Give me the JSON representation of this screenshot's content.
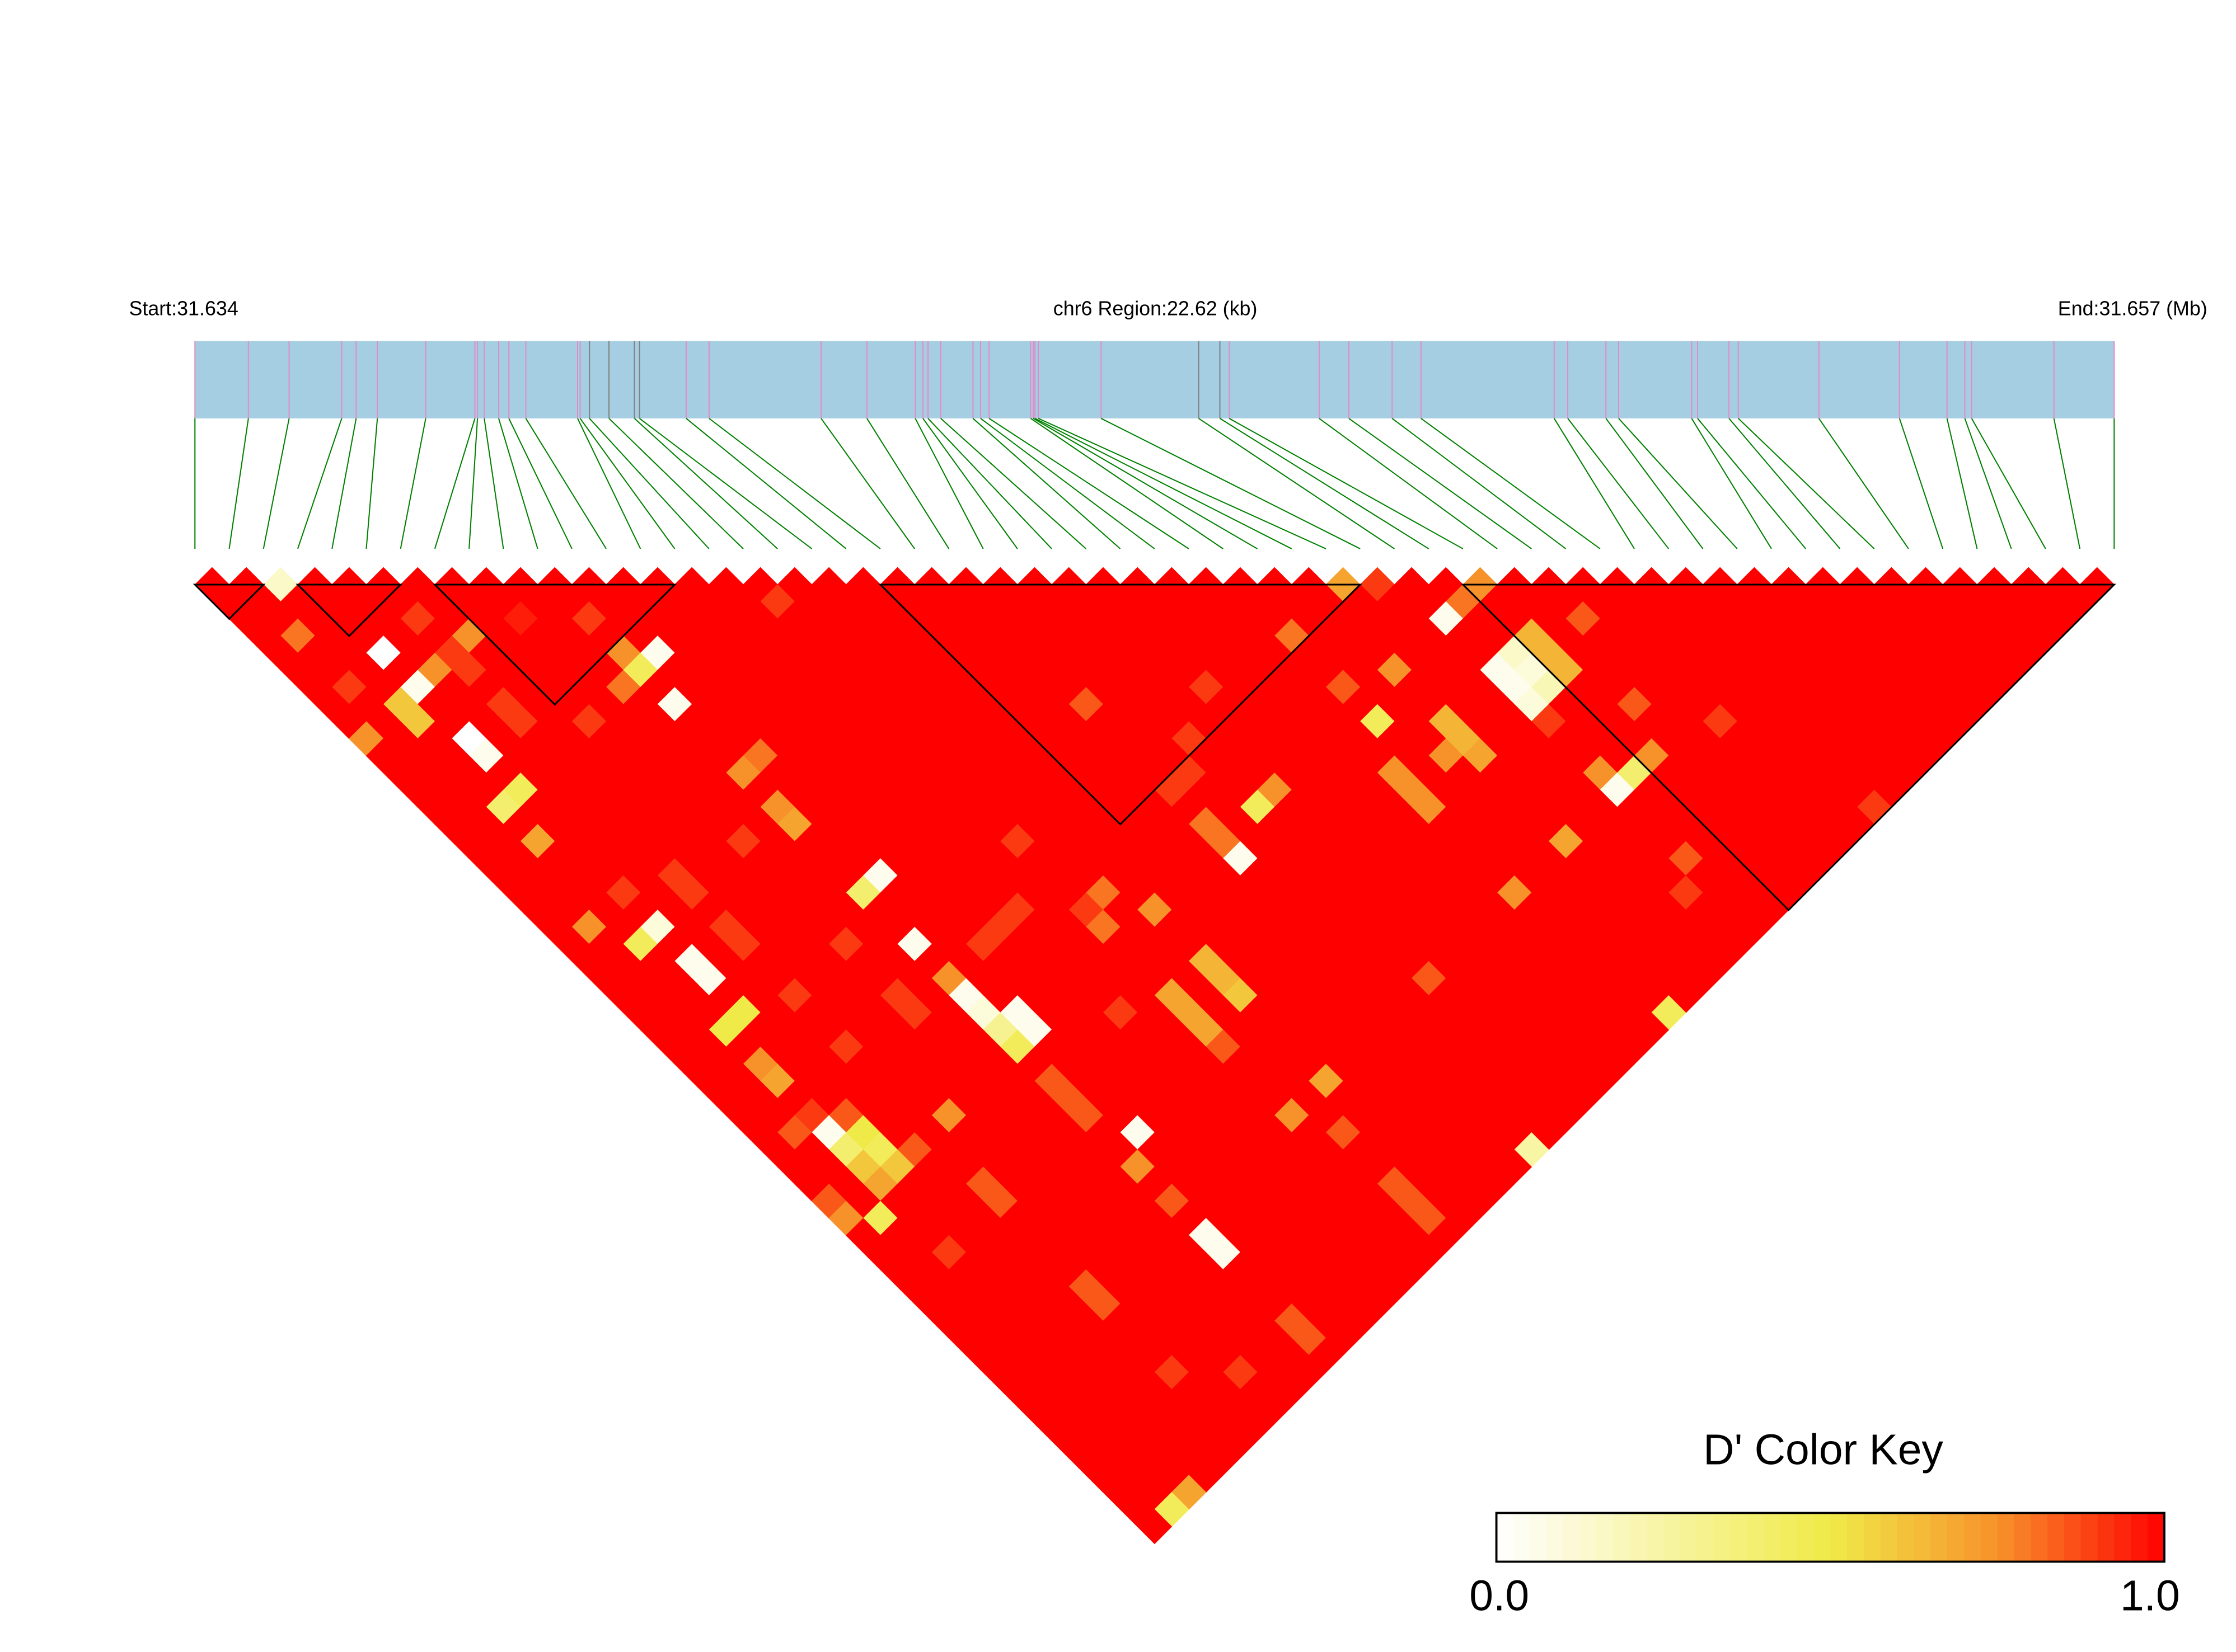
{
  "chart_data": {
    "type": "heatmap",
    "subtype": "LD triangle heatmap",
    "header": {
      "start_label": "Start:31.634",
      "region_label": "chr6 Region:22.62 (kb)",
      "end_label": "End:31.657 (Mb)"
    },
    "region": {
      "chromosome": "chr6",
      "start_mb": 31.634,
      "end_mb": 31.657,
      "length_kb": 22.62
    },
    "snp_positions_mb": [
      31.634,
      31.63463,
      31.63511,
      31.63573,
      31.6359,
      31.63615,
      31.63672,
      31.6373,
      31.63733,
      31.63741,
      31.63758,
      31.6377,
      31.6379,
      31.63851,
      31.63854,
      31.63865,
      31.63888,
      31.63918,
      31.63924,
      31.63979,
      31.64006,
      31.64138,
      31.64192,
      31.64249,
      31.64258,
      31.64264,
      31.64279,
      31.64317,
      31.64326,
      31.64336,
      31.64385,
      31.64388,
      31.6439,
      31.64394,
      31.64468,
      31.64583,
      31.64608,
      31.64619,
      31.64725,
      31.6476,
      31.64811,
      31.64845,
      31.65002,
      31.65018,
      31.65063,
      31.65078,
      31.65164,
      31.65171,
      31.65208,
      31.65219,
      31.65314,
      31.65409,
      31.65465,
      31.65486,
      31.65494,
      31.65591,
      31.65662
    ],
    "snp_marker_colors": {
      "default": "#E08CC8",
      "gray_indices": [
        15,
        16,
        17,
        18,
        35,
        36
      ],
      "gray": "#808080"
    },
    "metric": "D'",
    "default_value": 1.0,
    "value_exceptions": [
      [
        2,
        3,
        0.15
      ],
      [
        1,
        5,
        0.8
      ],
      [
        3,
        8,
        0.0
      ],
      [
        5,
        8,
        0.9
      ],
      [
        2,
        10,
        0.6
      ],
      [
        3,
        10,
        0.05
      ],
      [
        2,
        11,
        0.6
      ],
      [
        4,
        10,
        0.75
      ],
      [
        6,
        10,
        0.75
      ],
      [
        5,
        10,
        0.9
      ],
      [
        5,
        11,
        0.9
      ],
      [
        1,
        8,
        0.9
      ],
      [
        0,
        10,
        0.75
      ],
      [
        3,
        13,
        0.0
      ],
      [
        3,
        14,
        0.05
      ],
      [
        3,
        16,
        0.45
      ],
      [
        2,
        16,
        0.4
      ],
      [
        2,
        18,
        0.7
      ],
      [
        5,
        13,
        0.9
      ],
      [
        5,
        14,
        0.9
      ],
      [
        7,
        16,
        0.9
      ],
      [
        10,
        13,
        0.9
      ],
      [
        10,
        15,
        0.75
      ],
      [
        10,
        16,
        0.45
      ],
      [
        11,
        16,
        0.05
      ],
      [
        9,
        16,
        0.8
      ],
      [
        10,
        18,
        0.05
      ],
      [
        8,
        11,
        0.95
      ],
      [
        16,
        18,
        0.9
      ],
      [
        10,
        22,
        0.75
      ],
      [
        11,
        22,
        0.8
      ],
      [
        10,
        24,
        0.75
      ],
      [
        10,
        25,
        0.7
      ],
      [
        8,
        24,
        0.9
      ],
      [
        10,
        29,
        0.4
      ],
      [
        11,
        29,
        0.05
      ],
      [
        3,
        22,
        0.9
      ],
      [
        5,
        23,
        0.9
      ],
      [
        5,
        24,
        0.9
      ],
      [
        1,
        22,
        0.75
      ],
      [
        2,
        24,
        0.45
      ],
      [
        3,
        24,
        0.1
      ],
      [
        3,
        26,
        0.05
      ],
      [
        3,
        27,
        0.05
      ],
      [
        5,
        26,
        0.9
      ],
      [
        5,
        27,
        0.9
      ],
      [
        2,
        29,
        0.5
      ],
      [
        3,
        29,
        0.5
      ],
      [
        5,
        30,
        0.9
      ],
      [
        2,
        31,
        0.75
      ],
      [
        2,
        32,
        0.7
      ],
      [
        5,
        33,
        0.9
      ],
      [
        8,
        30,
        0.9
      ],
      [
        10,
        32,
        0.05
      ],
      [
        2,
        35,
        0.05
      ],
      [
        2,
        36,
        0.4
      ],
      [
        3,
        36,
        0.5
      ],
      [
        3,
        37,
        0.45
      ],
      [
        2,
        37,
        0.6
      ],
      [
        3,
        38,
        0.6
      ],
      [
        2,
        38,
        0.7
      ],
      [
        1,
        39,
        0.45
      ],
      [
        0,
        38,
        0.75
      ],
      [
        0,
        37,
        0.85
      ],
      [
        1,
        34,
        0.85
      ],
      [
        2,
        34,
        0.9
      ],
      [
        3,
        35,
        0.85
      ],
      [
        4,
        38,
        0.85
      ],
      [
        6,
        38,
        0.75
      ],
      [
        10,
        35,
        0.05
      ],
      [
        10,
        36,
        0.1
      ],
      [
        10,
        37,
        0.3
      ],
      [
        10,
        38,
        0.45
      ],
      [
        11,
        37,
        0.05
      ],
      [
        11,
        38,
        0.05
      ],
      [
        8,
        34,
        0.9
      ],
      [
        8,
        33,
        0.9
      ],
      [
        10,
        34,
        0.75
      ],
      [
        14,
        34,
        0.9
      ],
      [
        13,
        34,
        0.9
      ],
      [
        12,
        34,
        0.9
      ],
      [
        16,
        32,
        0.9
      ],
      [
        16,
        36,
        0.9
      ],
      [
        17,
        36,
        0.8
      ],
      [
        16,
        37,
        0.8
      ],
      [
        18,
        38,
        0.75
      ],
      [
        18,
        41,
        0.65
      ],
      [
        18,
        42,
        0.65
      ],
      [
        18,
        43,
        0.6
      ],
      [
        16,
        41,
        0.7
      ],
      [
        16,
        42,
        0.7
      ],
      [
        16,
        43,
        0.7
      ],
      [
        14,
        40,
        0.9
      ],
      [
        16,
        44,
        0.85
      ],
      [
        22,
        30,
        0.85
      ],
      [
        24,
        34,
        0.9
      ],
      [
        23,
        35,
        0.9
      ],
      [
        22,
        35,
        0.9
      ],
      [
        22,
        37,
        0.8
      ],
      [
        22,
        38,
        0.8
      ],
      [
        22,
        39,
        0.05
      ],
      [
        24,
        38,
        0.45
      ],
      [
        25,
        38,
        0.75
      ],
      [
        26,
        33,
        0.9
      ],
      [
        30,
        34,
        0.8
      ],
      [
        33,
        34,
        0.7
      ],
      [
        34,
        35,
        0.9
      ],
      [
        37,
        38,
        0.75
      ],
      [
        35,
        38,
        0.05
      ],
      [
        36,
        38,
        0.8
      ],
      [
        35,
        41,
        0.05
      ],
      [
        35,
        42,
        0.05
      ],
      [
        35,
        43,
        0.1
      ],
      [
        37,
        41,
        0.65
      ],
      [
        37,
        42,
        0.65
      ],
      [
        37,
        43,
        0.65
      ],
      [
        36,
        41,
        0.15
      ],
      [
        36,
        42,
        0.1
      ],
      [
        36,
        43,
        0.2
      ],
      [
        32,
        38,
        0.75
      ],
      [
        30,
        37,
        0.85
      ],
      [
        30,
        39,
        0.45
      ],
      [
        32,
        41,
        0.65
      ],
      [
        32,
        42,
        0.65
      ],
      [
        32,
        43,
        0.7
      ],
      [
        31,
        42,
        0.75
      ],
      [
        29,
        41,
        0.75
      ],
      [
        29,
        42,
        0.75
      ],
      [
        29,
        43,
        0.75
      ],
      [
        39,
        42,
        0.85
      ],
      [
        38,
        46,
        0.85
      ],
      [
        35,
        44,
        0.9
      ],
      [
        35,
        48,
        0.05
      ],
      [
        35,
        47,
        0.75
      ],
      [
        37,
        48,
        0.75
      ],
      [
        36,
        48,
        0.4
      ],
      [
        40,
        49,
        0.9
      ],
      [
        32,
        48,
        0.7
      ],
      [
        29,
        48,
        0.75
      ],
      [
        35,
        52,
        0.85
      ],
      [
        34,
        53,
        0.9
      ],
      [
        42,
        56,
        0.9
      ],
      [
        24,
        48,
        0.85
      ],
      [
        30,
        56,
        0.45
      ],
      [
        22,
        56,
        0.25
      ],
      [
        18,
        48,
        0.7
      ],
      [
        16,
        48,
        0.75
      ],
      [
        17,
        50,
        0.85
      ],
      [
        17,
        53,
        0.85
      ],
      [
        17,
        54,
        0.85
      ],
      [
        17,
        55,
        0.85
      ],
      [
        11,
        44,
        0.05
      ],
      [
        10,
        45,
        0.75
      ],
      [
        10,
        47,
        0.85
      ],
      [
        10,
        49,
        0.05
      ],
      [
        10,
        50,
        0.05
      ],
      [
        10,
        40,
        0.85
      ],
      [
        10,
        41,
        0.85
      ],
      [
        10,
        42,
        0.85
      ],
      [
        2,
        42,
        0.9
      ],
      [
        5,
        41,
        0.85
      ],
      [
        5,
        42,
        0.85
      ],
      [
        5,
        47,
        0.85
      ],
      [
        5,
        48,
        0.85
      ],
      [
        5,
        52,
        0.9
      ],
      [
        7,
        54,
        0.9
      ],
      [
        10,
        54,
        0.85
      ],
      [
        10,
        55,
        0.85
      ],
      [
        1,
        56,
        0.45
      ],
      [
        2,
        56,
        0.7
      ]
    ],
    "blocks": [
      [
        0,
        2
      ],
      [
        3,
        6
      ],
      [
        7,
        14
      ],
      [
        20,
        34
      ],
      [
        37,
        56
      ]
    ],
    "color_key": {
      "title": "D' Color Key",
      "min_label": "0.0",
      "max_label": "1.0",
      "range": [
        0.0,
        1.0
      ],
      "stops": [
        {
          "value": 0.0,
          "color": "#FFFFFF"
        },
        {
          "value": 0.5,
          "color": "#F0EA48"
        },
        {
          "value": 0.75,
          "color": "#F7922A"
        },
        {
          "value": 1.0,
          "color": "#FF0000"
        }
      ],
      "steps": 40
    },
    "colors": {
      "gene_bar": "#A6CEE2",
      "connector": "#008000",
      "block_outline": "#000000"
    }
  }
}
